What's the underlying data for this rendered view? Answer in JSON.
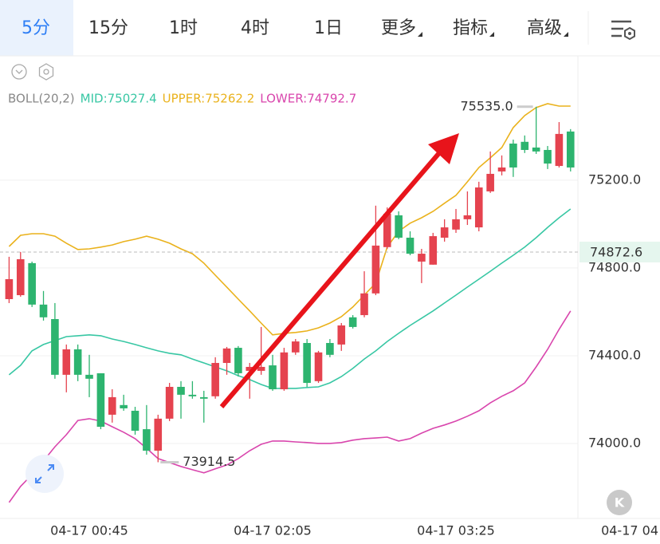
{
  "tabs": [
    "5分",
    "15分",
    "1时",
    "4时",
    "1日",
    "更多",
    "指标",
    "高级"
  ],
  "k_button": "K",
  "chart_data": {
    "type": "candlestick",
    "indicator": "BOLL(20,2)",
    "categories": [
      null,
      null,
      null,
      null,
      null,
      null,
      null,
      "04-17 00:45",
      null,
      null,
      null,
      null,
      null,
      null,
      null,
      null,
      null,
      null,
      null,
      null,
      null,
      null,
      null,
      "04-17 02:05",
      null,
      null,
      null,
      null,
      null,
      null,
      null,
      null,
      null,
      null,
      null,
      null,
      null,
      null,
      null,
      "04-17 03:25",
      null,
      null,
      null,
      null,
      null,
      null,
      null,
      null,
      null,
      null,
      null,
      null,
      null,
      null,
      null,
      "04-17 04"
    ],
    "candles": {
      "up_color": "#e5434f",
      "down_color": "#2db46f",
      "open": [
        74658,
        74676,
        74822,
        74633,
        74567,
        74313,
        74429,
        74313,
        74320,
        74131,
        74175,
        74149,
        74065,
        73967,
        74113,
        74258,
        74222,
        74211,
        74215,
        74367,
        74436,
        74331,
        74331,
        74356,
        74247,
        74415,
        74458,
        74284,
        74458,
        74451,
        74575,
        74585,
        74684,
        74895,
        75040,
        74938,
        74829,
        74815,
        74938,
        74975,
        75022,
        74985,
        75149,
        75240,
        75367,
        75375,
        75349,
        75338,
        75265,
        75422,
        null,
        null,
        null,
        null,
        null,
        null
      ],
      "high": [
        74851,
        74873,
        74829,
        74695,
        74640,
        74451,
        74451,
        74404,
        74320,
        74247,
        74222,
        74167,
        74175,
        74131,
        74276,
        74284,
        74284,
        74240,
        74393,
        74440,
        74444,
        74367,
        74531,
        74404,
        74436,
        74476,
        74476,
        74422,
        74476,
        74549,
        74585,
        74785,
        75084,
        75076,
        75058,
        74967,
        74887,
        74960,
        75022,
        75069,
        75149,
        75193,
        75331,
        75313,
        75385,
        75404,
        75535,
        75356,
        75465,
        75433,
        null,
        null,
        null,
        null,
        null,
        null
      ],
      "low": [
        74640,
        74669,
        74622,
        74560,
        74295,
        74233,
        74284,
        74211,
        74065,
        74095,
        74149,
        74040,
        73949,
        73914.5,
        74102,
        74113,
        74204,
        74095,
        74204,
        74313,
        74305,
        74204,
        74313,
        74240,
        74240,
        74404,
        74258,
        74276,
        74393,
        74422,
        74524,
        74575,
        74676,
        74887,
        74931,
        74858,
        74731,
        74815,
        74920,
        74960,
        74996,
        74967,
        75142,
        75222,
        75215,
        75324,
        75320,
        75251,
        75258,
        75240,
        null,
        null,
        null,
        null,
        null,
        null
      ],
      "close": [
        74749,
        74840,
        74633,
        74575,
        74313,
        74429,
        74313,
        74295,
        74076,
        74211,
        74160,
        74058,
        73967,
        74113,
        74258,
        74222,
        74215,
        74204,
        74367,
        74433,
        74320,
        74349,
        74349,
        74247,
        74415,
        74465,
        74276,
        74415,
        74404,
        74538,
        74531,
        74684,
        74902,
        75047,
        74938,
        74865,
        74865,
        74945,
        74985,
        75022,
        75040,
        75167,
        75229,
        75258,
        75258,
        75338,
        75331,
        75276,
        75411,
        75258,
        null,
        null,
        null,
        null,
        null,
        null
      ]
    },
    "series": [
      {
        "name": "MID:75027.4",
        "color": "#38c7a4",
        "values": [
          74313,
          74356,
          74422,
          74451,
          74469,
          74487,
          74491,
          74495,
          74491,
          74476,
          74465,
          74451,
          74436,
          74422,
          74411,
          74404,
          74385,
          74367,
          74349,
          74331,
          74309,
          74291,
          74269,
          74251,
          74251,
          74251,
          74255,
          74258,
          74276,
          74305,
          74342,
          74385,
          74422,
          74465,
          74502,
          74538,
          74571,
          74604,
          74640,
          74676,
          74713,
          74749,
          74785,
          74822,
          74858,
          74895,
          74938,
          74985,
          75029,
          75069,
          null,
          null,
          null,
          null,
          null,
          null
        ]
      },
      {
        "name": "UPPER:75262.2",
        "color": "#eab21c",
        "values": [
          74898,
          74949,
          74956,
          74956,
          74945,
          74913,
          74884,
          74887,
          74895,
          74905,
          74920,
          74931,
          74945,
          74931,
          74913,
          74887,
          74865,
          74822,
          74767,
          74713,
          74658,
          74604,
          74549,
          74495,
          74502,
          74506,
          74513,
          74527,
          74549,
          74578,
          74622,
          74676,
          74731,
          74895,
          74967,
          75004,
          75029,
          75058,
          75095,
          75131,
          75193,
          75258,
          75302,
          75349,
          75440,
          75495,
          75531,
          75549,
          75538,
          75538,
          null,
          null,
          null,
          null,
          null,
          null
        ]
      },
      {
        "name": "LOWER:74792.7",
        "color": "#d946ad",
        "values": [
          73731,
          73804,
          73858,
          73920,
          73985,
          74040,
          74105,
          74113,
          74102,
          74076,
          74051,
          74022,
          73978,
          73931,
          73913,
          73895,
          73880,
          73866,
          73884,
          73902,
          73931,
          73967,
          73996,
          74011,
          74011,
          74007,
          74004,
          74000,
          74000,
          74004,
          74015,
          74022,
          74025,
          74029,
          74011,
          74022,
          74047,
          74069,
          74084,
          74102,
          74124,
          74149,
          74185,
          74215,
          74240,
          74276,
          74349,
          74429,
          74520,
          74604,
          null,
          null,
          null,
          null,
          null,
          null
        ]
      }
    ],
    "ylim": [
      73658,
      75767
    ],
    "yticks": [
      {
        "value": 74000,
        "label": "74000.0"
      },
      {
        "value": 74400,
        "label": "74400.0"
      },
      {
        "value": 74800,
        "label": "74800.0"
      },
      {
        "value": 75200,
        "label": "75200.0"
      }
    ],
    "grid": true,
    "current_price": 74872.6,
    "max_label": {
      "value": 75535,
      "label": "75535.0"
    },
    "min_label": 73914.5
  }
}
